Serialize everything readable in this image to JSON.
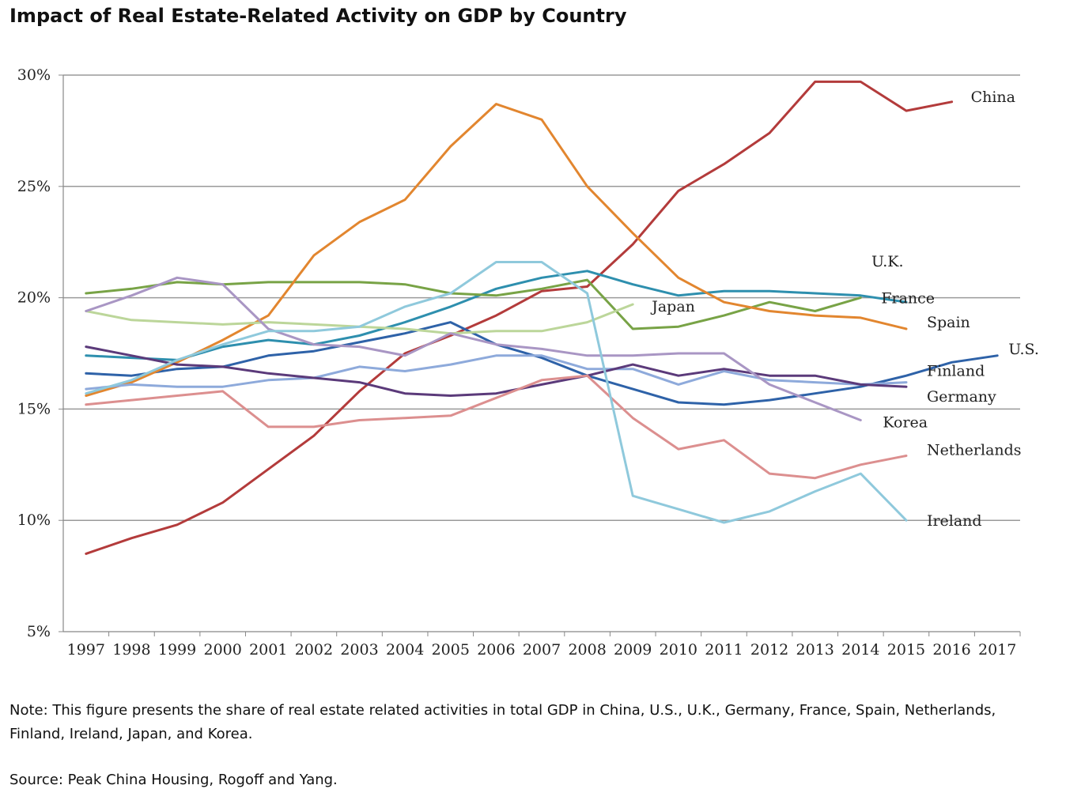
{
  "title": "Impact of Real Estate-Related Activity on GDP by Country",
  "note": "Note: This figure presents the share of real estate related activities in total GDP in China, U.S., U.K., Germany, France, Spain, Netherlands, Finland, Ireland, Japan, and Korea.",
  "source": "Source: Peak China Housing, Rogoff and Yang.",
  "chart_data": {
    "type": "line",
    "title": "Impact of Real Estate-Related Activity on GDP by Country",
    "xlabel": "",
    "ylabel": "",
    "ylim": [
      5,
      30
    ],
    "y_ticks": [
      5,
      10,
      15,
      20,
      25,
      30
    ],
    "y_tick_labels": [
      "5%",
      "10%",
      "15%",
      "20%",
      "25%",
      "30%"
    ],
    "grid": "horizontal",
    "legend": "inline labels at line ends",
    "x": [
      "1997",
      "1998",
      "1999",
      "2000",
      "2001",
      "2002",
      "2003",
      "2004",
      "2005",
      "2006",
      "2007",
      "2008",
      "2009",
      "2010",
      "2011",
      "2012",
      "2013",
      "2014",
      "2015",
      "2016",
      "2017"
    ],
    "series": [
      {
        "name": "China",
        "color": "#b33b3b",
        "values": [
          8.5,
          9.2,
          9.8,
          10.8,
          12.3,
          13.8,
          15.8,
          17.5,
          18.3,
          19.2,
          20.3,
          20.5,
          22.4,
          24.8,
          26.0,
          27.4,
          29.7,
          29.7,
          28.4,
          28.8,
          null
        ]
      },
      {
        "name": "U.S.",
        "color": "#2e62a8",
        "values": [
          16.6,
          16.5,
          16.8,
          16.9,
          17.4,
          17.6,
          18.0,
          18.4,
          18.9,
          17.9,
          17.3,
          16.5,
          15.9,
          15.3,
          15.2,
          15.4,
          15.7,
          16.0,
          16.5,
          17.1,
          17.4
        ]
      },
      {
        "name": "U.K.",
        "color": "#2e8fae",
        "values": [
          17.4,
          17.3,
          17.2,
          17.8,
          18.1,
          17.9,
          18.3,
          18.9,
          19.6,
          20.4,
          20.9,
          21.2,
          20.6,
          20.1,
          20.3,
          20.3,
          20.2,
          20.1,
          19.8,
          null,
          null
        ]
      },
      {
        "name": "France",
        "color": "#78a346",
        "values": [
          20.2,
          20.4,
          20.7,
          20.6,
          20.7,
          20.7,
          20.7,
          20.6,
          20.2,
          20.1,
          20.4,
          20.8,
          18.6,
          18.7,
          19.2,
          19.8,
          19.4,
          20.0,
          null,
          null,
          null
        ]
      },
      {
        "name": "Spain",
        "color": "#e2862f",
        "values": [
          15.6,
          16.2,
          17.1,
          18.1,
          19.2,
          21.9,
          23.4,
          24.4,
          26.8,
          28.7,
          28.0,
          25.0,
          22.9,
          20.9,
          19.8,
          19.4,
          19.2,
          19.1,
          18.6,
          null,
          null
        ]
      },
      {
        "name": "Japan",
        "color": "#bcd69a",
        "values": [
          19.4,
          19.0,
          18.9,
          18.8,
          18.9,
          18.8,
          18.7,
          18.6,
          18.4,
          18.5,
          18.5,
          18.9,
          19.7,
          null,
          null,
          null,
          null,
          null,
          null,
          null,
          null
        ]
      },
      {
        "name": "Finland",
        "color": "#8eaadb",
        "values": [
          15.9,
          16.1,
          16.0,
          16.0,
          16.3,
          16.4,
          16.9,
          16.7,
          17.0,
          17.4,
          17.4,
          16.8,
          16.8,
          16.1,
          16.7,
          16.3,
          16.2,
          16.1,
          16.2,
          null,
          null
        ]
      },
      {
        "name": "Germany",
        "color": "#5b3a7a",
        "values": [
          17.8,
          17.4,
          17.0,
          16.9,
          16.6,
          16.4,
          16.2,
          15.7,
          15.6,
          15.7,
          16.1,
          16.5,
          17.0,
          16.5,
          16.8,
          16.5,
          16.5,
          16.1,
          16.0,
          null,
          null
        ]
      },
      {
        "name": "Korea",
        "color": "#a996c4",
        "values": [
          19.4,
          20.1,
          20.9,
          20.6,
          18.6,
          17.9,
          17.8,
          17.4,
          18.4,
          17.9,
          17.7,
          17.4,
          17.4,
          17.5,
          17.5,
          16.1,
          15.3,
          14.5,
          null,
          null,
          null
        ]
      },
      {
        "name": "Netherlands",
        "color": "#dc8f8f",
        "values": [
          15.2,
          15.4,
          15.6,
          15.8,
          14.2,
          14.2,
          14.5,
          14.6,
          14.7,
          15.5,
          16.3,
          16.5,
          14.6,
          13.2,
          13.6,
          12.1,
          11.9,
          12.5,
          12.9,
          null,
          null
        ]
      },
      {
        "name": "Ireland",
        "color": "#8fc9dc",
        "values": [
          15.7,
          16.3,
          17.2,
          17.9,
          18.5,
          18.5,
          18.7,
          19.6,
          20.2,
          21.6,
          21.6,
          20.2,
          11.1,
          10.5,
          9.9,
          10.4,
          11.3,
          12.1,
          10.0,
          null,
          null
        ]
      }
    ],
    "annotations": [
      {
        "text": "China",
        "series": "China"
      },
      {
        "text": "U.S.",
        "series": "U.S."
      },
      {
        "text": "U.K.",
        "series": "U.K."
      },
      {
        "text": "France",
        "series": "France"
      },
      {
        "text": "Spain",
        "series": "Spain"
      },
      {
        "text": "Japan",
        "series": "Japan"
      },
      {
        "text": "Finland",
        "series": "Finland"
      },
      {
        "text": "Germany",
        "series": "Germany"
      },
      {
        "text": "Korea",
        "series": "Korea"
      },
      {
        "text": "Netherlands",
        "series": "Netherlands"
      },
      {
        "text": "Ireland",
        "series": "Ireland"
      }
    ]
  }
}
